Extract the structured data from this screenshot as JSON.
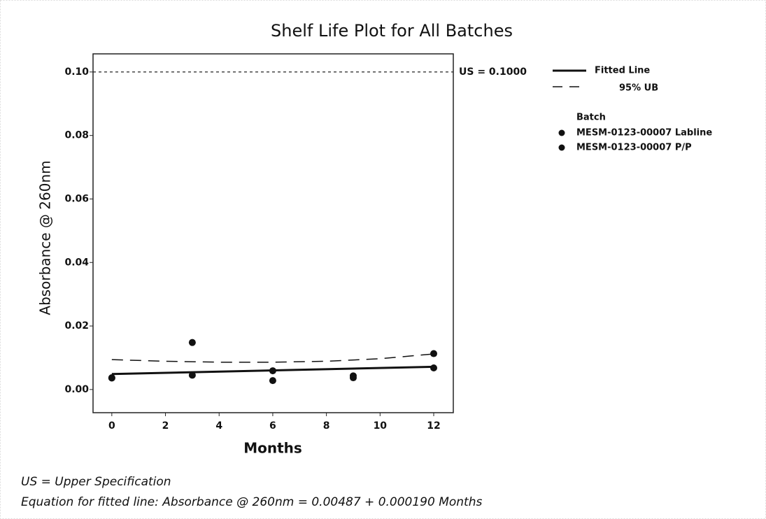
{
  "chart_data": {
    "type": "scatter",
    "title": "Shelf Life Plot for All Batches",
    "x_label": "Months",
    "y_label": "Absorbance @ 260nm",
    "xlim": [
      -0.7,
      12.73
    ],
    "ylim": [
      -0.0073,
      0.1057
    ],
    "xticks": [
      0,
      2,
      4,
      6,
      8,
      10,
      12
    ],
    "yticks": [
      {
        "value": 0,
        "label": "0.00"
      },
      {
        "value": 0.02,
        "label": "0.02"
      },
      {
        "value": 0.04,
        "label": "0.04"
      },
      {
        "value": 0.06,
        "label": "0.06"
      },
      {
        "value": 0.08,
        "label": "0.08"
      },
      {
        "value": 0.1,
        "label": "0.10"
      }
    ],
    "legend_title": "Batch",
    "series": [
      {
        "name": "MESM-0123-00007 Labline",
        "color": "#111111",
        "x": [
          0,
          3,
          6,
          9,
          12
        ],
        "values": [
          0.0037,
          0.0148,
          0.0059,
          0.0043,
          0.0113
        ]
      },
      {
        "name": "MESM-0123-00007 P/P",
        "color": "#111111",
        "x": [
          0,
          3,
          6,
          9,
          12
        ],
        "values": [
          0.0036,
          0.0045,
          0.0028,
          0.0037,
          0.0068
        ]
      }
    ],
    "fitted_line": {
      "name": "Fitted Line",
      "color": "#111111",
      "x": [
        0,
        12
      ],
      "values": [
        0.00487,
        0.00715
      ]
    },
    "upper_bound": {
      "name": "95% UB",
      "color": "#111111",
      "x": [
        0,
        2,
        4,
        6,
        8,
        10,
        12
      ],
      "values": [
        0.0094,
        0.0089,
        0.0086,
        0.0086,
        0.0089,
        0.0097,
        0.0112
      ]
    },
    "spec": {
      "value": 0.1,
      "label": "US = 0.1000"
    },
    "notes": [
      "US = Upper Specification",
      "Equation for fitted line: Absorbance @ 260nm = 0.00487 + 0.000190 Months"
    ]
  }
}
